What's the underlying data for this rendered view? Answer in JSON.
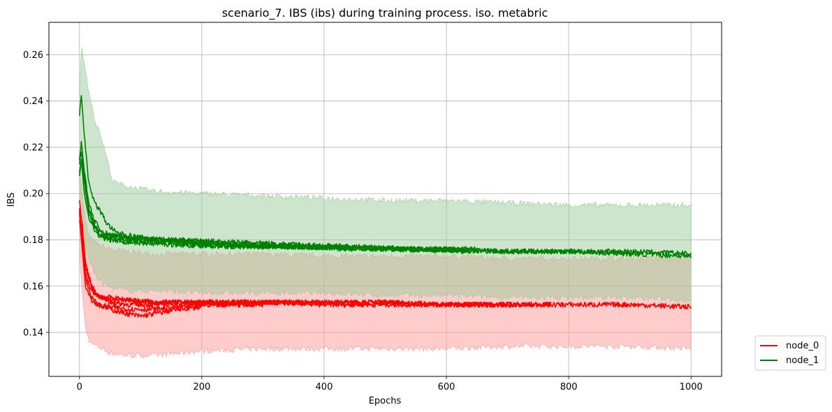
{
  "chart_data": {
    "type": "line",
    "title": "scenario_7. IBS (ibs) during training process. iso. metabric",
    "xlabel": "Epochs",
    "ylabel": "IBS",
    "xlim": [
      -50,
      1050
    ],
    "ylim": [
      0.121,
      0.274
    ],
    "xticks": [
      0,
      200,
      400,
      600,
      800,
      1000
    ],
    "yticks": [
      0.14,
      0.16,
      0.18,
      0.2,
      0.22,
      0.24,
      0.26
    ],
    "ytick_labels": [
      "0.14",
      "0.16",
      "0.18",
      "0.20",
      "0.22",
      "0.24",
      "0.26"
    ],
    "grid": true,
    "legend_position": "outside-bottom-right",
    "series": [
      {
        "name": "node_0",
        "color": "#ff0000",
        "band_color": "#ff9999",
        "band": {
          "x": [
            0,
            5,
            10,
            15,
            20,
            30,
            50,
            80,
            120,
            200,
            300,
            400,
            500,
            600,
            700,
            800,
            900,
            1000
          ],
          "lower": [
            0.176,
            0.155,
            0.142,
            0.137,
            0.135,
            0.134,
            0.131,
            0.13,
            0.13,
            0.132,
            0.133,
            0.133,
            0.133,
            0.133,
            0.134,
            0.134,
            0.134,
            0.133
          ],
          "upper": [
            0.21,
            0.198,
            0.188,
            0.182,
            0.18,
            0.178,
            0.176,
            0.175,
            0.174,
            0.174,
            0.174,
            0.173,
            0.173,
            0.173,
            0.172,
            0.172,
            0.172,
            0.172
          ]
        },
        "runs": [
          {
            "x": [
              0,
              5,
              10,
              20,
              30,
              50,
              80,
              120,
              160,
              200,
              300,
              400,
              500,
              600,
              700,
              770
            ],
            "y": [
              0.191,
              0.18,
              0.165,
              0.158,
              0.156,
              0.154,
              0.154,
              0.153,
              0.153,
              0.153,
              0.153,
              0.152,
              0.152,
              0.152,
              0.152,
              0.152
            ]
          },
          {
            "x": [
              0,
              5,
              10,
              20,
              30,
              50,
              80,
              120,
              160,
              200,
              300,
              400,
              500,
              600,
              700,
              800,
              900,
              1000
            ],
            "y": [
              0.197,
              0.185,
              0.17,
              0.16,
              0.156,
              0.153,
              0.152,
              0.152,
              0.153,
              0.153,
              0.153,
              0.153,
              0.153,
              0.152,
              0.152,
              0.152,
              0.152,
              0.151
            ]
          },
          {
            "x": [
              0,
              5,
              10,
              20,
              30,
              50,
              80,
              120,
              160,
              200,
              250,
              300
            ],
            "y": [
              0.193,
              0.178,
              0.163,
              0.155,
              0.152,
              0.151,
              0.15,
              0.15,
              0.151,
              0.152,
              0.152,
              0.152
            ]
          },
          {
            "x": [
              0,
              5,
              10,
              20,
              30,
              50,
              80,
              100,
              120,
              140,
              160,
              200
            ],
            "y": [
              0.189,
              0.175,
              0.16,
              0.154,
              0.152,
              0.15,
              0.148,
              0.147,
              0.148,
              0.149,
              0.15,
              0.151
            ]
          },
          {
            "x": [
              0,
              5,
              10,
              20,
              30,
              50,
              80,
              120,
              160,
              200,
              300,
              400,
              500,
              600,
              700
            ],
            "y": [
              0.192,
              0.182,
              0.168,
              0.159,
              0.156,
              0.155,
              0.154,
              0.153,
              0.153,
              0.153,
              0.153,
              0.153,
              0.153,
              0.152,
              0.152
            ]
          }
        ]
      },
      {
        "name": "node_1",
        "color": "#008000",
        "band_color": "#99cc99",
        "band": {
          "x": [
            0,
            3,
            8,
            15,
            25,
            35,
            45,
            55,
            80,
            120,
            200,
            300,
            400,
            500,
            600,
            700,
            800,
            900,
            1000
          ],
          "lower": [
            0.189,
            0.182,
            0.177,
            0.172,
            0.165,
            0.162,
            0.16,
            0.159,
            0.158,
            0.158,
            0.157,
            0.157,
            0.157,
            0.156,
            0.156,
            0.155,
            0.155,
            0.155,
            0.154
          ],
          "upper": [
            0.24,
            0.266,
            0.255,
            0.245,
            0.232,
            0.225,
            0.215,
            0.205,
            0.203,
            0.201,
            0.2,
            0.199,
            0.198,
            0.197,
            0.197,
            0.196,
            0.195,
            0.195,
            0.195
          ]
        },
        "runs": [
          {
            "x": [
              0,
              3,
              8,
              15,
              25,
              35,
              45,
              60,
              100,
              200,
              300,
              400,
              500,
              600,
              700,
              800,
              900,
              1000
            ],
            "y": [
              0.234,
              0.243,
              0.225,
              0.205,
              0.196,
              0.192,
              0.187,
              0.183,
              0.181,
              0.178,
              0.177,
              0.177,
              0.176,
              0.176,
              0.175,
              0.175,
              0.175,
              0.174
            ]
          },
          {
            "x": [
              0,
              3,
              8,
              15,
              25,
              35,
              50,
              80,
              150,
              250,
              400,
              550,
              700,
              800,
              900,
              1000
            ],
            "y": [
              0.209,
              0.215,
              0.205,
              0.192,
              0.185,
              0.182,
              0.181,
              0.18,
              0.179,
              0.178,
              0.177,
              0.176,
              0.175,
              0.175,
              0.174,
              0.173
            ]
          },
          {
            "x": [
              0,
              3,
              8,
              15,
              25,
              35,
              50,
              80,
              150,
              250,
              350,
              450,
              550,
              650
            ],
            "y": [
              0.213,
              0.218,
              0.208,
              0.194,
              0.186,
              0.183,
              0.182,
              0.181,
              0.18,
              0.179,
              0.178,
              0.177,
              0.176,
              0.176
            ]
          },
          {
            "x": [
              0,
              3,
              8,
              15,
              25,
              35,
              50,
              80,
              150,
              250,
              350,
              450
            ],
            "y": [
              0.214,
              0.222,
              0.21,
              0.196,
              0.188,
              0.184,
              0.182,
              0.181,
              0.18,
              0.178,
              0.177,
              0.176
            ]
          },
          {
            "x": [
              0,
              3,
              8,
              15,
              25,
              35,
              50,
              80,
              150,
              250,
              350,
              500,
              650
            ],
            "y": [
              0.207,
              0.214,
              0.2,
              0.19,
              0.184,
              0.181,
              0.18,
              0.179,
              0.178,
              0.177,
              0.177,
              0.176,
              0.175
            ]
          }
        ]
      }
    ]
  }
}
